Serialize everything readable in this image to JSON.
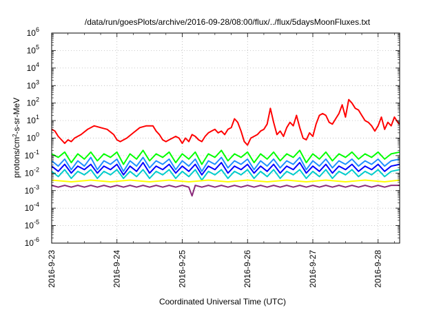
{
  "chart_data": {
    "type": "line",
    "title": "/data/run/goesPlots/archive/2016-09-28/08:00/flux/../flux/5daysMoonFluxes.txt",
    "xlabel": "Coordinated Universal Time (UTC)",
    "ylabel": "protons/cm2-s-sr-MeV",
    "ylabel_parts": [
      "protons/cm",
      "2",
      "-s-sr-MeV"
    ],
    "yscale": "log",
    "ylim_exp": [
      -6,
      6
    ],
    "y_ticks": [
      {
        "base": "10",
        "exp": "-6"
      },
      {
        "base": "10",
        "exp": "-5"
      },
      {
        "base": "10",
        "exp": "-4"
      },
      {
        "base": "10",
        "exp": "-3"
      },
      {
        "base": "10",
        "exp": "-2"
      },
      {
        "base": "10",
        "exp": "-1"
      },
      {
        "base": "10",
        "exp": "0"
      },
      {
        "base": "10",
        "exp": "1"
      },
      {
        "base": "10",
        "exp": "2"
      },
      {
        "base": "10",
        "exp": "3"
      },
      {
        "base": "10",
        "exp": "4"
      },
      {
        "base": "10",
        "exp": "5"
      },
      {
        "base": "10",
        "exp": "6"
      }
    ],
    "x_ticks": [
      "2016-9-23",
      "2016-9-24",
      "2016-9-25",
      "2016-9-26",
      "2016-9-27",
      "2016-9-28"
    ],
    "xlim_days": [
      0,
      5.33
    ],
    "grid": true,
    "series": [
      {
        "color": "#ff0000",
        "x": [
          0.0,
          0.05,
          0.1,
          0.15,
          0.2,
          0.25,
          0.3,
          0.35,
          0.45,
          0.55,
          0.65,
          0.75,
          0.85,
          0.95,
          1.0,
          1.05,
          1.15,
          1.25,
          1.35,
          1.45,
          1.55,
          1.6,
          1.65,
          1.7,
          1.75,
          1.8,
          1.85,
          1.9,
          1.95,
          2.0,
          2.05,
          2.1,
          2.15,
          2.2,
          2.25,
          2.3,
          2.35,
          2.4,
          2.45,
          2.5,
          2.55,
          2.6,
          2.65,
          2.7,
          2.75,
          2.8,
          2.85,
          2.9,
          2.95,
          3.0,
          3.05,
          3.1,
          3.15,
          3.2,
          3.25,
          3.3,
          3.35,
          3.4,
          3.45,
          3.5,
          3.55,
          3.6,
          3.65,
          3.7,
          3.75,
          3.8,
          3.85,
          3.9,
          3.95,
          4.0,
          4.05,
          4.1,
          4.15,
          4.2,
          4.25,
          4.3,
          4.35,
          4.4,
          4.45,
          4.5,
          4.55,
          4.6,
          4.65,
          4.7,
          4.75,
          4.8,
          4.85,
          4.9,
          4.95,
          5.0,
          5.05,
          5.1,
          5.15,
          5.2,
          5.25,
          5.3,
          5.33
        ],
        "y_exp": [
          0.5,
          0.4,
          0.1,
          -0.1,
          -0.3,
          -0.1,
          -0.2,
          0.0,
          0.2,
          0.5,
          0.7,
          0.6,
          0.5,
          0.2,
          -0.1,
          -0.2,
          0.0,
          0.3,
          0.6,
          0.7,
          0.7,
          0.4,
          0.2,
          -0.1,
          -0.2,
          -0.1,
          0.0,
          0.1,
          0.0,
          -0.3,
          0.0,
          -0.2,
          0.2,
          0.1,
          -0.1,
          -0.2,
          0.1,
          0.3,
          0.4,
          0.5,
          0.3,
          0.4,
          0.2,
          0.5,
          0.6,
          1.1,
          0.9,
          0.4,
          -0.2,
          -0.4,
          0.0,
          0.1,
          0.2,
          0.4,
          0.5,
          0.8,
          1.7,
          0.9,
          0.2,
          0.4,
          0.1,
          0.6,
          0.9,
          0.7,
          1.3,
          0.6,
          0.0,
          -0.1,
          0.3,
          0.1,
          0.8,
          1.3,
          1.4,
          1.3,
          0.9,
          0.8,
          1.1,
          1.4,
          1.9,
          1.2,
          2.2,
          2.0,
          1.7,
          1.6,
          1.3,
          1.0,
          0.9,
          0.7,
          0.4,
          0.7,
          1.2,
          0.5,
          0.9,
          0.7,
          1.2,
          0.9,
          0.8
        ]
      },
      {
        "color": "#00ff00",
        "x": [
          0.0,
          0.1,
          0.2,
          0.3,
          0.4,
          0.5,
          0.6,
          0.7,
          0.8,
          0.9,
          1.0,
          1.1,
          1.2,
          1.3,
          1.4,
          1.5,
          1.6,
          1.7,
          1.8,
          1.9,
          2.0,
          2.1,
          2.2,
          2.3,
          2.4,
          2.5,
          2.6,
          2.7,
          2.8,
          2.9,
          3.0,
          3.1,
          3.2,
          3.3,
          3.4,
          3.5,
          3.6,
          3.7,
          3.8,
          3.9,
          4.0,
          4.1,
          4.2,
          4.3,
          4.4,
          4.5,
          4.6,
          4.7,
          4.8,
          4.9,
          5.0,
          5.1,
          5.2,
          5.33
        ],
        "y_exp": [
          -0.9,
          -1.1,
          -0.8,
          -1.4,
          -0.9,
          -1.2,
          -0.8,
          -1.3,
          -0.9,
          -1.1,
          -0.8,
          -1.5,
          -0.9,
          -1.2,
          -0.7,
          -1.3,
          -0.9,
          -1.1,
          -0.8,
          -1.4,
          -0.9,
          -1.2,
          -0.8,
          -1.5,
          -0.9,
          -1.1,
          -0.7,
          -1.3,
          -0.9,
          -1.1,
          -0.8,
          -1.4,
          -0.9,
          -1.2,
          -0.8,
          -1.3,
          -0.9,
          -1.1,
          -0.7,
          -1.4,
          -0.9,
          -1.2,
          -0.8,
          -1.3,
          -0.9,
          -1.1,
          -0.8,
          -1.2,
          -0.9,
          -1.1,
          -0.8,
          -1.2,
          -0.9,
          -0.8
        ]
      },
      {
        "color": "#1e90ff",
        "x": [
          0.0,
          0.1,
          0.2,
          0.3,
          0.4,
          0.5,
          0.6,
          0.7,
          0.8,
          0.9,
          1.0,
          1.1,
          1.2,
          1.3,
          1.4,
          1.5,
          1.6,
          1.7,
          1.8,
          1.9,
          2.0,
          2.1,
          2.2,
          2.3,
          2.4,
          2.5,
          2.6,
          2.7,
          2.8,
          2.9,
          3.0,
          3.1,
          3.2,
          3.3,
          3.4,
          3.5,
          3.6,
          3.7,
          3.8,
          3.9,
          4.0,
          4.1,
          4.2,
          4.3,
          4.4,
          4.5,
          4.6,
          4.7,
          4.8,
          4.9,
          5.0,
          5.1,
          5.2,
          5.33
        ],
        "y_exp": [
          -1.3,
          -1.6,
          -1.2,
          -1.8,
          -1.3,
          -1.6,
          -1.1,
          -1.8,
          -1.3,
          -1.5,
          -1.2,
          -1.9,
          -1.3,
          -1.6,
          -1.1,
          -1.7,
          -1.3,
          -1.5,
          -1.2,
          -1.8,
          -1.3,
          -1.6,
          -1.2,
          -1.9,
          -1.3,
          -1.5,
          -1.1,
          -1.7,
          -1.3,
          -1.5,
          -1.2,
          -1.8,
          -1.3,
          -1.6,
          -1.2,
          -1.7,
          -1.3,
          -1.5,
          -1.1,
          -1.8,
          -1.3,
          -1.6,
          -1.2,
          -1.7,
          -1.3,
          -1.5,
          -1.2,
          -1.6,
          -1.3,
          -1.5,
          -1.2,
          -1.6,
          -1.3,
          -1.2
        ]
      },
      {
        "color": "#0000ff",
        "x": [
          0.0,
          0.1,
          0.2,
          0.3,
          0.4,
          0.5,
          0.6,
          0.7,
          0.8,
          0.9,
          1.0,
          1.1,
          1.2,
          1.3,
          1.4,
          1.5,
          1.6,
          1.7,
          1.8,
          1.9,
          2.0,
          2.1,
          2.2,
          2.3,
          2.4,
          2.5,
          2.6,
          2.7,
          2.8,
          2.9,
          3.0,
          3.1,
          3.2,
          3.3,
          3.4,
          3.5,
          3.6,
          3.7,
          3.8,
          3.9,
          4.0,
          4.1,
          4.2,
          4.3,
          4.4,
          4.5,
          4.6,
          4.7,
          4.8,
          4.9,
          5.0,
          5.1,
          5.2,
          5.33
        ],
        "y_exp": [
          -1.6,
          -1.9,
          -1.5,
          -2.0,
          -1.6,
          -1.8,
          -1.5,
          -2.0,
          -1.6,
          -1.8,
          -1.5,
          -2.1,
          -1.6,
          -1.9,
          -1.4,
          -2.0,
          -1.6,
          -1.8,
          -1.5,
          -2.0,
          -1.6,
          -1.9,
          -1.5,
          -2.1,
          -1.6,
          -1.8,
          -1.4,
          -2.0,
          -1.6,
          -1.8,
          -1.5,
          -2.0,
          -1.6,
          -1.9,
          -1.5,
          -2.0,
          -1.6,
          -1.8,
          -1.4,
          -2.0,
          -1.6,
          -1.9,
          -1.5,
          -2.0,
          -1.6,
          -1.8,
          -1.5,
          -1.9,
          -1.6,
          -1.8,
          -1.5,
          -1.9,
          -1.6,
          -1.5
        ]
      },
      {
        "color": "#00cccc",
        "x": [
          0.0,
          0.1,
          0.2,
          0.3,
          0.4,
          0.5,
          0.6,
          0.7,
          0.8,
          0.9,
          1.0,
          1.1,
          1.2,
          1.3,
          1.4,
          1.5,
          1.6,
          1.7,
          1.8,
          1.9,
          2.0,
          2.1,
          2.2,
          2.3,
          2.4,
          2.5,
          2.6,
          2.7,
          2.8,
          2.9,
          3.0,
          3.1,
          3.2,
          3.3,
          3.4,
          3.5,
          3.6,
          3.7,
          3.8,
          3.9,
          4.0,
          4.1,
          4.2,
          4.3,
          4.4,
          4.5,
          4.6,
          4.7,
          4.8,
          4.9,
          5.0,
          5.1,
          5.2,
          5.33
        ],
        "y_exp": [
          -1.9,
          -2.2,
          -1.8,
          -2.3,
          -1.9,
          -2.1,
          -1.8,
          -2.3,
          -1.9,
          -2.1,
          -1.8,
          -2.3,
          -1.9,
          -2.2,
          -1.8,
          -2.3,
          -1.9,
          -2.1,
          -1.8,
          -2.3,
          -1.9,
          -2.2,
          -1.8,
          -2.4,
          -1.9,
          -2.1,
          -1.8,
          -2.3,
          -1.9,
          -2.1,
          -1.8,
          -2.3,
          -1.9,
          -2.2,
          -1.8,
          -2.3,
          -1.9,
          -2.1,
          -1.8,
          -2.3,
          -1.9,
          -2.2,
          -1.8,
          -2.3,
          -1.9,
          -2.1,
          -1.8,
          -2.2,
          -1.9,
          -2.1,
          -1.8,
          -2.2,
          -1.9,
          -1.8
        ]
      },
      {
        "color": "#ffff00",
        "x": [
          0.0,
          0.3,
          0.6,
          0.9,
          1.2,
          1.5,
          1.8,
          2.1,
          2.4,
          2.7,
          3.0,
          3.3,
          3.6,
          3.9,
          4.2,
          4.5,
          4.8,
          5.1,
          5.33
        ],
        "y_exp": [
          -2.4,
          -2.5,
          -2.4,
          -2.5,
          -2.4,
          -2.5,
          -2.4,
          -2.5,
          -2.4,
          -2.5,
          -2.4,
          -2.5,
          -2.4,
          -2.5,
          -2.4,
          -2.5,
          -2.4,
          -2.5,
          -2.4
        ]
      },
      {
        "color": "#8b2a7a",
        "x": [
          0.0,
          0.1,
          0.2,
          0.3,
          0.4,
          0.5,
          0.6,
          0.7,
          0.8,
          0.9,
          1.0,
          1.1,
          1.2,
          1.3,
          1.4,
          1.5,
          1.6,
          1.7,
          1.8,
          1.9,
          2.0,
          2.1,
          2.15,
          2.2,
          2.3,
          2.4,
          2.5,
          2.6,
          2.7,
          2.8,
          2.9,
          3.0,
          3.1,
          3.2,
          3.3,
          3.4,
          3.5,
          3.6,
          3.7,
          3.8,
          3.9,
          4.0,
          4.1,
          4.2,
          4.3,
          4.4,
          4.5,
          4.6,
          4.7,
          4.8,
          4.9,
          5.0,
          5.1,
          5.2,
          5.33
        ],
        "y_exp": [
          -2.7,
          -2.8,
          -2.7,
          -2.8,
          -2.7,
          -2.8,
          -2.7,
          -2.8,
          -2.7,
          -2.8,
          -2.7,
          -2.8,
          -2.7,
          -2.8,
          -2.7,
          -2.8,
          -2.7,
          -2.8,
          -2.7,
          -2.8,
          -2.7,
          -2.8,
          -3.3,
          -2.7,
          -2.8,
          -2.7,
          -2.8,
          -2.7,
          -2.8,
          -2.7,
          -2.8,
          -2.7,
          -2.8,
          -2.7,
          -2.8,
          -2.7,
          -2.8,
          -2.7,
          -2.8,
          -2.7,
          -2.8,
          -2.7,
          -2.8,
          -2.7,
          -2.8,
          -2.7,
          -2.8,
          -2.7,
          -2.8,
          -2.7,
          -2.8,
          -2.7,
          -2.8,
          -2.7,
          -2.7
        ]
      }
    ]
  }
}
